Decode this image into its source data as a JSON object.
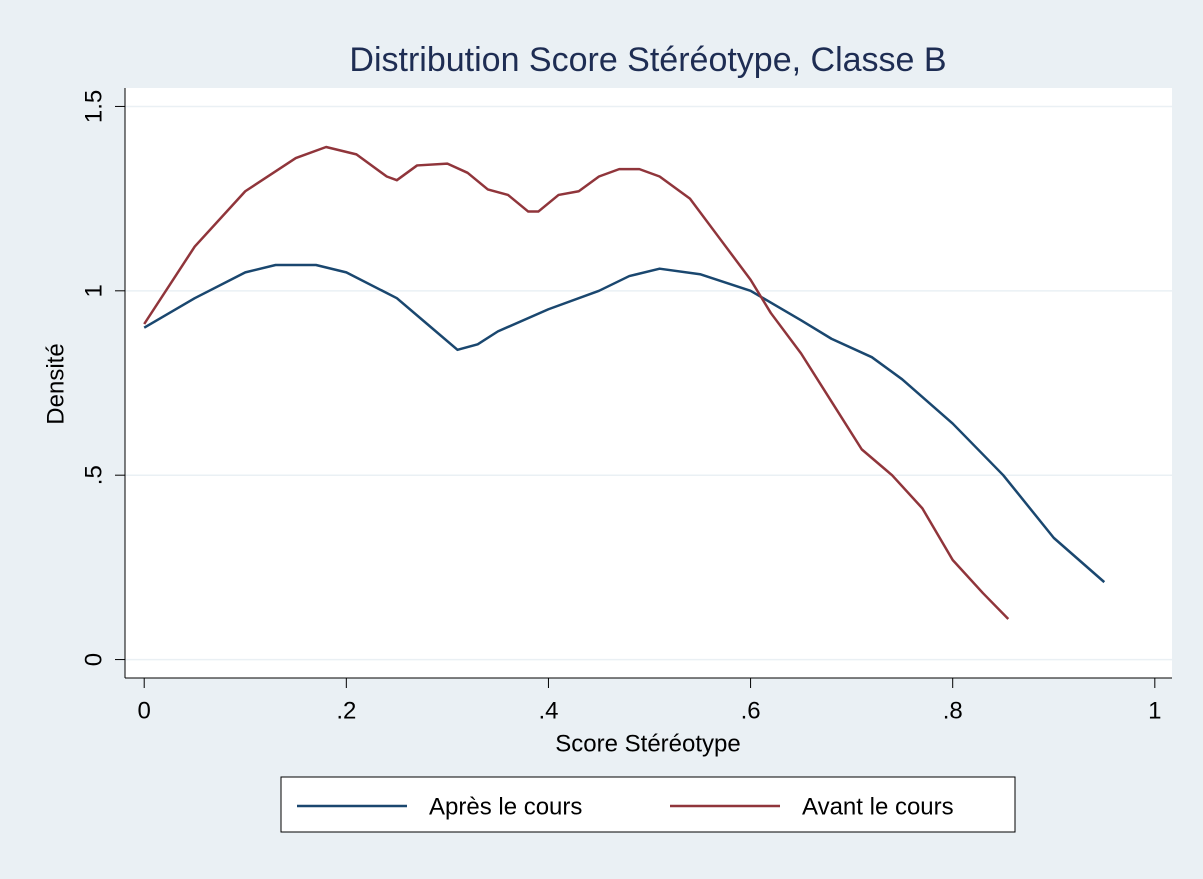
{
  "chart_data": {
    "type": "line",
    "title": "Distribution Score Stéréotype, Classe B",
    "x_label": "Score Stéréotype",
    "y_label": "Densité",
    "xlim": [
      -0.019,
      1.017
    ],
    "ylim": [
      -0.05,
      1.55
    ],
    "xticks": [
      0,
      {
        "value": 0.2,
        "label": ".2"
      },
      {
        "value": 0.4,
        "label": ".4"
      },
      {
        "value": 0.6,
        "label": ".6"
      },
      {
        "value": 0.8,
        "label": ".8"
      },
      1
    ],
    "yticks": [
      0,
      {
        "value": 0.5,
        "label": ".5"
      },
      1,
      1.5
    ],
    "grid": true,
    "legend": "bottom",
    "series": [
      {
        "name": "Après le cours",
        "color": "#1a476f",
        "x": [
          0,
          0.05,
          0.1,
          0.13,
          0.17,
          0.2,
          0.25,
          0.28,
          0.31,
          0.33,
          0.35,
          0.4,
          0.45,
          0.48,
          0.51,
          0.55,
          0.6,
          0.65,
          0.68,
          0.72,
          0.75,
          0.8,
          0.85,
          0.9,
          0.95
        ],
        "values": [
          0.9,
          0.98,
          1.05,
          1.07,
          1.07,
          1.05,
          0.98,
          0.91,
          0.84,
          0.855,
          0.89,
          0.95,
          1.0,
          1.04,
          1.06,
          1.045,
          1.0,
          0.92,
          0.87,
          0.82,
          0.76,
          0.64,
          0.5,
          0.33,
          0.21
        ]
      },
      {
        "name": "Avant le cours",
        "color": "#90353b",
        "x": [
          0,
          0.05,
          0.1,
          0.15,
          0.18,
          0.21,
          0.24,
          0.25,
          0.27,
          0.3,
          0.32,
          0.34,
          0.36,
          0.38,
          0.39,
          0.41,
          0.43,
          0.45,
          0.47,
          0.49,
          0.51,
          0.54,
          0.57,
          0.6,
          0.62,
          0.65,
          0.68,
          0.71,
          0.74,
          0.77,
          0.8,
          0.83,
          0.855
        ],
        "values": [
          0.91,
          1.12,
          1.27,
          1.36,
          1.39,
          1.37,
          1.31,
          1.3,
          1.34,
          1.345,
          1.32,
          1.275,
          1.26,
          1.215,
          1.215,
          1.26,
          1.27,
          1.31,
          1.33,
          1.33,
          1.31,
          1.25,
          1.14,
          1.03,
          0.94,
          0.83,
          0.7,
          0.57,
          0.5,
          0.41,
          0.27,
          0.18,
          0.11
        ]
      }
    ]
  }
}
